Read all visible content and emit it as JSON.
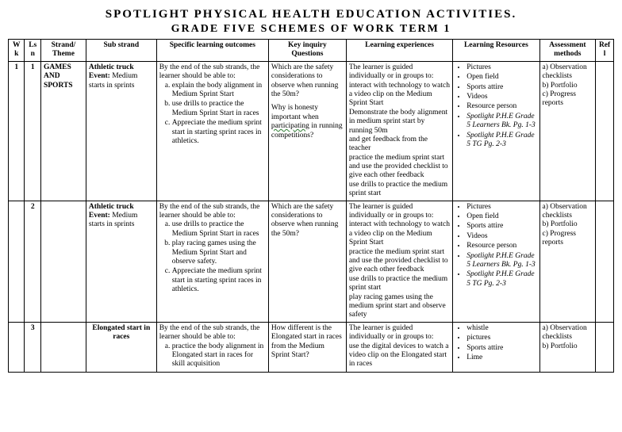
{
  "title": "SPOTLIGHT PHYSICAL HEALTH EDUCATION ACTIVITIES.",
  "subtitle": "GRADE FIVE SCHEMES OF WORK TERM 1",
  "headers": {
    "wk": "Wk",
    "lsn": "Ls n",
    "strand": "Strand/ Theme",
    "sub": "Sub strand",
    "slo": "Specific learning outcomes",
    "kiq": "Key inquiry Questions",
    "le": "Learning experiences",
    "lr": "Learning Resources",
    "am": "Assessment methods",
    "refl": "Ref l"
  },
  "rows": [
    {
      "wk": "1",
      "lsn": "1",
      "strand": "GAMES AND SPORTS",
      "sub_bold": "Athletic truck Event:",
      "sub_rest": " Medium starts in sprints",
      "slo_intro": "By the end of the sub strands, the learner should be able to:",
      "slo_items": [
        "explain the body alignment in Medium Sprint Start",
        "use drills to practice the Medium Sprint Start in races",
        "Appreciate the medium sprint start in starting sprint races in athletics."
      ],
      "kiq_p1": "Which are the safety considerations to observe when running the 50m?",
      "kiq_p2a": "Why is honesty important when ",
      "kiq_wavy": "participating",
      "kiq_p2b": " in running competitions?",
      "le_intro": "The learner is guided individually or in groups to:",
      "le_lines": [
        "interact with technology to watch a video clip on the Medium Sprint Start",
        "Demonstrate the body alignment in medium sprint start by running 50m",
        "and get feedback from the teacher",
        "practice the medium sprint start and use the provided checklist to give each other feedback",
        "use drills to practice the medium sprint start"
      ],
      "lr_items_plain": [
        "Pictures",
        "Open field",
        "Sports attire",
        "Videos",
        "Resource person"
      ],
      "lr_items_italic": [
        "Spotlight P.H.E Grade 5 Learners Bk. Pg. 1-3",
        "Spotlight  P.H.E Grade 5 TG Pg. 2-3"
      ],
      "am_text": "a) Observation checklists\nb) Portfolio\nc) Progress reports"
    },
    {
      "wk": "",
      "lsn": "2",
      "strand": "",
      "sub_bold": "Athletic truck Event:",
      "sub_rest": " Medium starts in sprints",
      "slo_intro": "By the end of the sub strands, the learner should be able to:",
      "slo_items": [
        "use drills to practice the Medium Sprint Start in races",
        "play racing games using the Medium Sprint Start and observe safety.",
        "Appreciate the medium sprint start in starting sprint races in athletics."
      ],
      "kiq_p1": "Which are the safety considerations to observe when running the 50m?",
      "kiq_p2a": "",
      "kiq_wavy": "",
      "kiq_p2b": "",
      "le_intro": "The learner is guided individually or in groups to:",
      "le_lines": [
        "interact with technology to watch a video clip on the Medium Sprint Start",
        "practice the medium sprint start and use the provided checklist to give each other feedback",
        "use drills to practice the medium sprint start",
        "play racing games using the medium sprint start and observe safety"
      ],
      "lr_items_plain": [
        "Pictures",
        "Open field",
        "Sports attire",
        "Videos",
        "Resource person"
      ],
      "lr_items_italic": [
        "Spotlight P.H.E Grade 5 Learners Bk. Pg. 1-3",
        "Spotlight  P.H.E Grade 5 TG Pg. 2-3"
      ],
      "am_text": "a) Observation checklists\nb) Portfolio\nc) Progress reports"
    },
    {
      "wk": "",
      "lsn": "3",
      "strand": "",
      "sub_bold": "Elongated start in races",
      "sub_rest": "",
      "slo_intro": "By the end of the sub strands, the learner should be able to:",
      "slo_items": [
        "practice the body alignment in Elongated start in races for skill acquisition"
      ],
      "kiq_p1": "How different is the Elongated start in races from the Medium Sprint Start?",
      "kiq_p2a": "",
      "kiq_wavy": "",
      "kiq_p2b": "",
      "le_intro": "The learner is guided individually or in groups to:",
      "le_lines": [
        "use the digital devices to watch a video clip on the Elongated start in races"
      ],
      "lr_items_plain": [
        "whistle",
        "pictures",
        "Sports attire",
        "Lime"
      ],
      "lr_items_italic": [],
      "am_text": "a) Observation checklists\nb) Portfolio"
    }
  ]
}
